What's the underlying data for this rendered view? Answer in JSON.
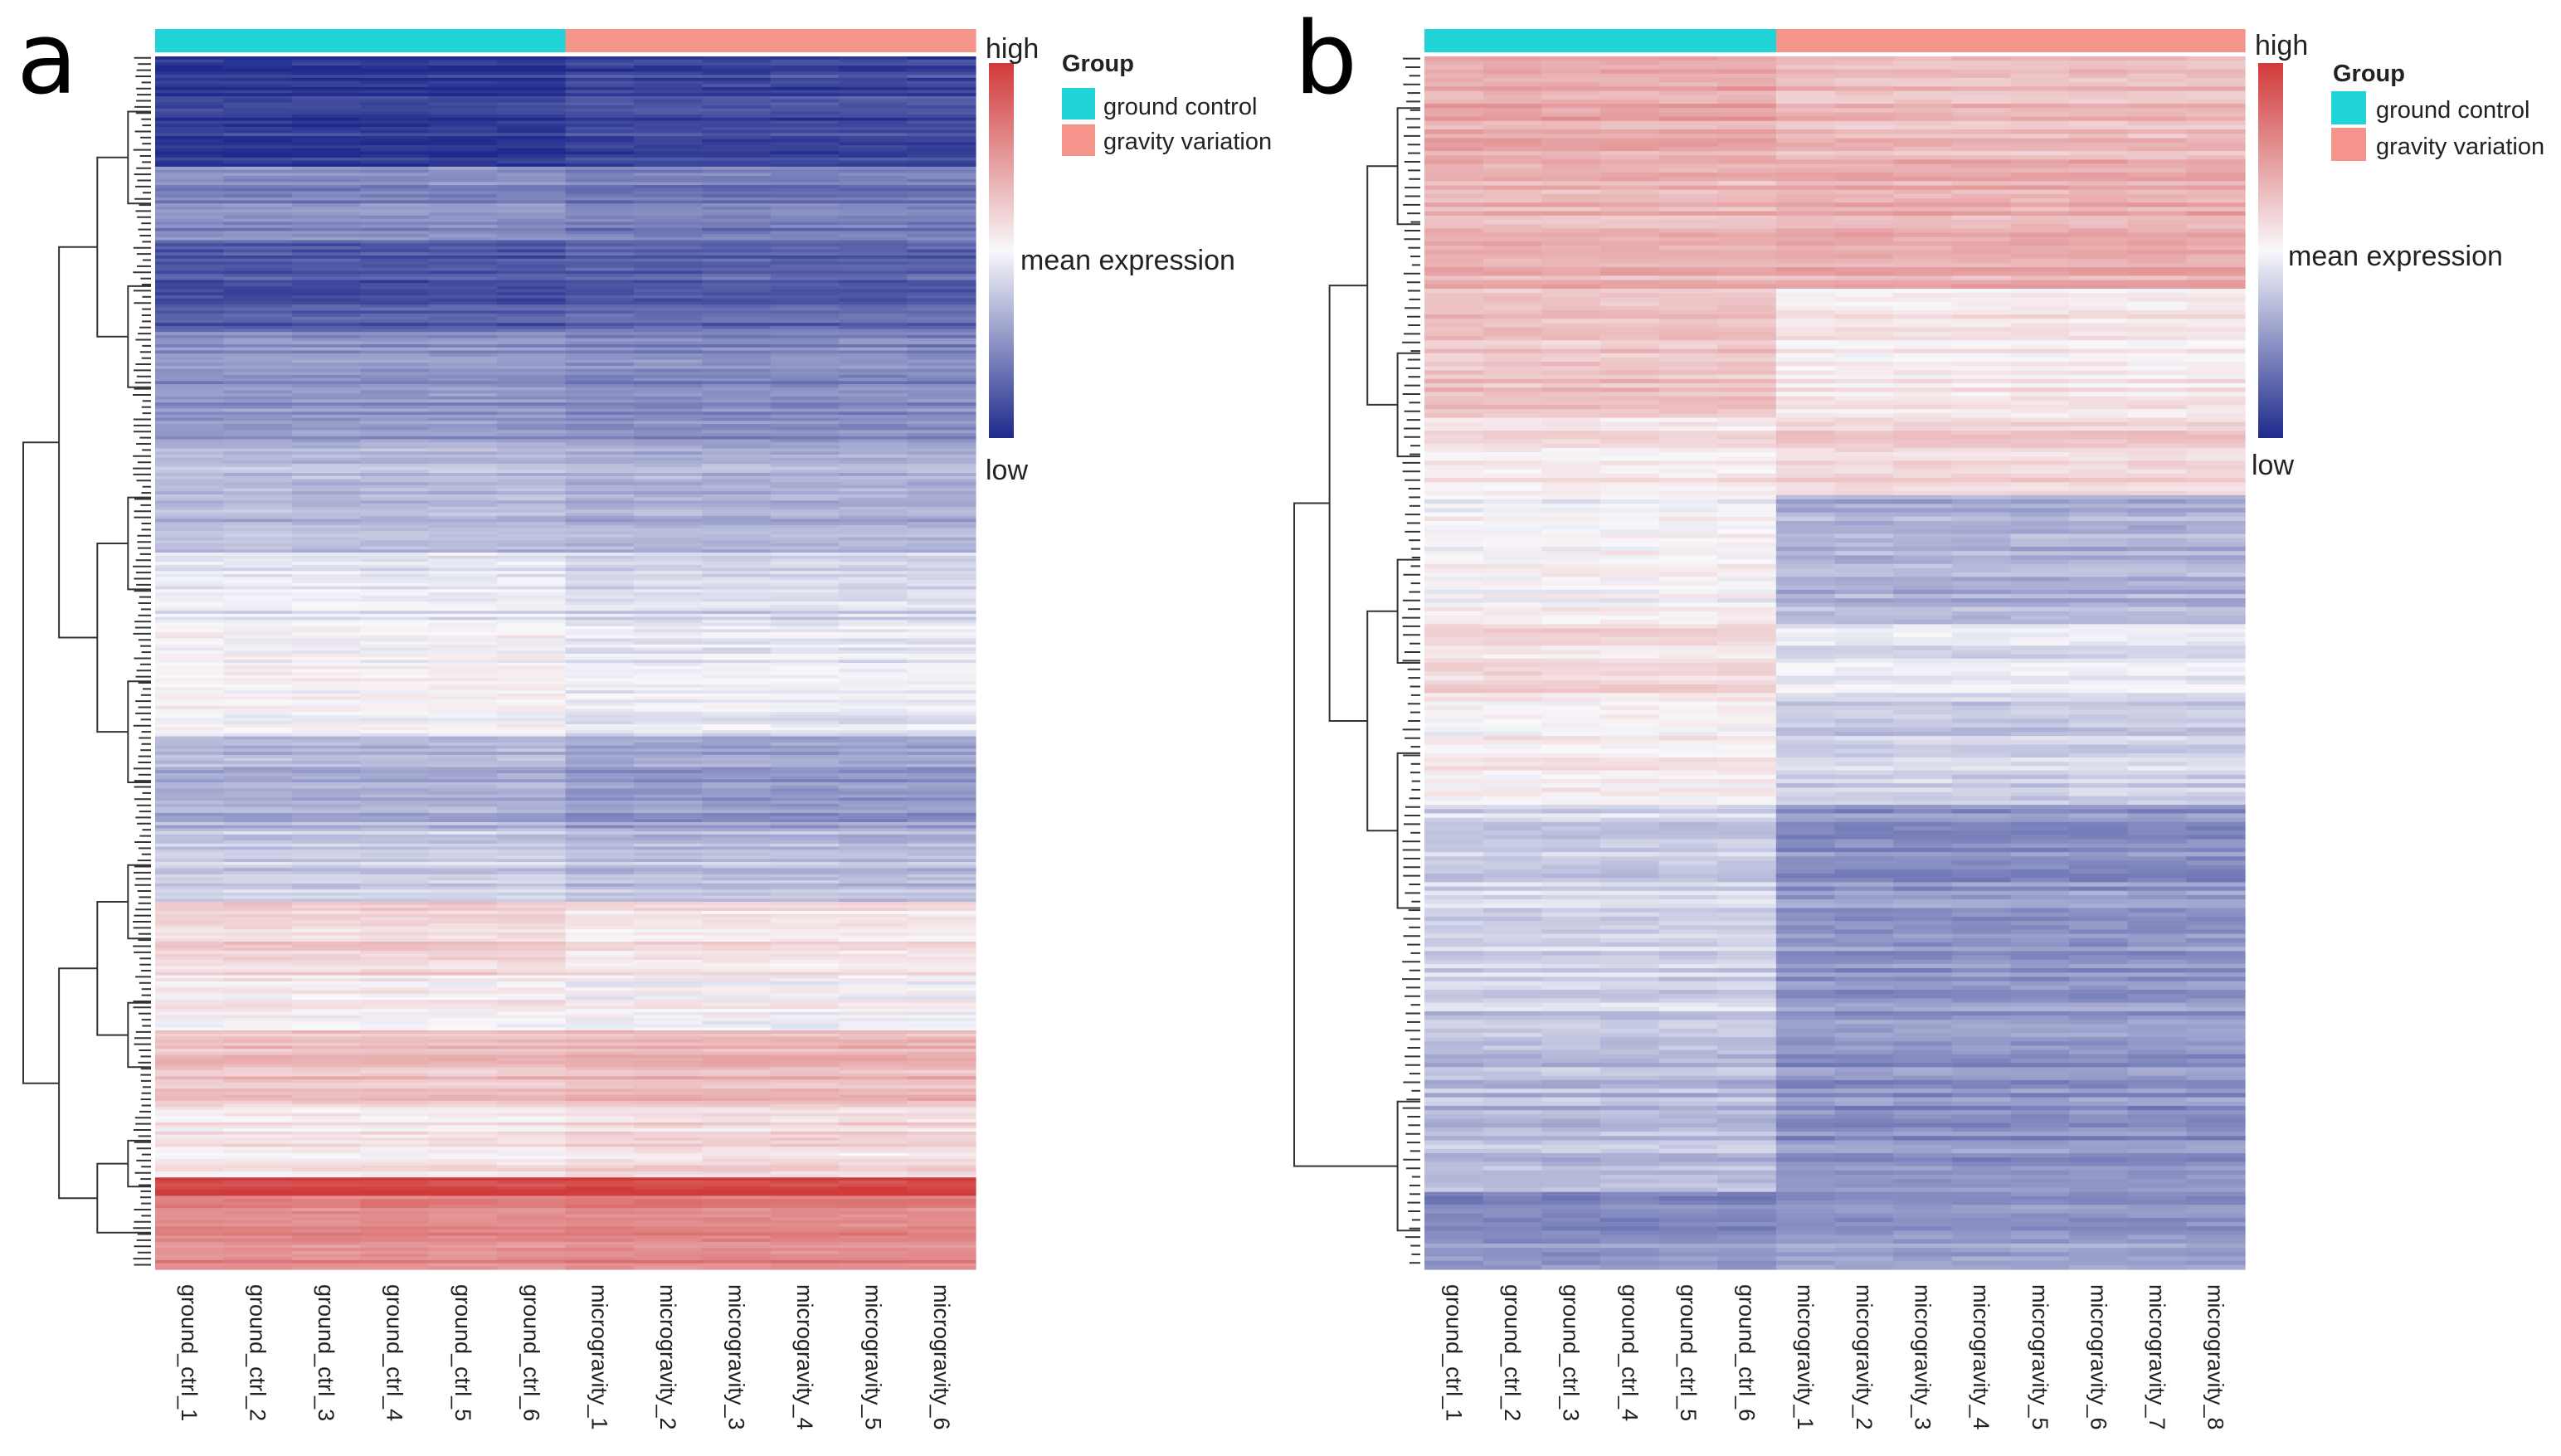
{
  "figure": {
    "panels": [
      "a",
      "b"
    ],
    "legend": {
      "title": "Group",
      "entries": [
        {
          "label": "ground control",
          "color": "#1fd3d6"
        },
        {
          "label": "gravity variation",
          "color": "#f4948a"
        }
      ]
    },
    "color_scale": {
      "high_label": "high",
      "mid_label": "mean expression",
      "low_label": "low",
      "high_color": "#d13a3a",
      "mid_color": "#f8f8fb",
      "low_color": "#1e2a8c"
    }
  },
  "chart_data": [
    {
      "type": "heatmap",
      "panel": "a",
      "title": "",
      "columns": [
        "ground_ctrl_1",
        "ground_ctrl_2",
        "ground_ctrl_3",
        "ground_ctrl_4",
        "ground_ctrl_5",
        "ground_ctrl_6",
        "microgravity_1",
        "microgravity_2",
        "microgravity_3",
        "microgravity_4",
        "microgravity_5",
        "microgravity_6"
      ],
      "column_groups": [
        "ground control",
        "ground control",
        "ground control",
        "ground control",
        "ground control",
        "ground control",
        "gravity variation",
        "gravity variation",
        "gravity variation",
        "gravity variation",
        "gravity variation",
        "gravity variation"
      ],
      "value_range": [
        -1,
        1
      ],
      "row_blocks": [
        {
          "rows": 6,
          "ground": -0.92,
          "gravity": -0.85
        },
        {
          "rows": 4,
          "ground": -0.55,
          "gravity": -0.62
        },
        {
          "rows": 5,
          "ground": -0.78,
          "gravity": -0.72
        },
        {
          "rows": 6,
          "ground": -0.5,
          "gravity": -0.55
        },
        {
          "rows": 6,
          "ground": -0.3,
          "gravity": -0.35
        },
        {
          "rows": 4,
          "ground": -0.1,
          "gravity": -0.18
        },
        {
          "rows": 6,
          "ground": 0.0,
          "gravity": -0.08
        },
        {
          "rows": 5,
          "ground": -0.35,
          "gravity": -0.45
        },
        {
          "rows": 4,
          "ground": -0.2,
          "gravity": -0.28
        },
        {
          "rows": 4,
          "ground": 0.2,
          "gravity": 0.12
        },
        {
          "rows": 3,
          "ground": 0.05,
          "gravity": 0.0
        },
        {
          "rows": 4,
          "ground": 0.3,
          "gravity": 0.35
        },
        {
          "rows": 4,
          "ground": 0.08,
          "gravity": 0.15
        },
        {
          "rows": 1,
          "ground": 0.95,
          "gravity": 0.95
        },
        {
          "rows": 4,
          "ground": 0.6,
          "gravity": 0.62
        }
      ]
    },
    {
      "type": "heatmap",
      "panel": "b",
      "title": "",
      "columns": [
        "ground_ctrl_1",
        "ground_ctrl_2",
        "ground_ctrl_3",
        "ground_ctrl_4",
        "ground_ctrl_5",
        "ground_ctrl_6",
        "microgravity_1",
        "microgravity_2",
        "microgravity_3",
        "microgravity_4",
        "microgravity_5",
        "microgravity_6",
        "microgravity_7",
        "microgravity_8"
      ],
      "column_groups": [
        "ground control",
        "ground control",
        "ground control",
        "ground control",
        "ground control",
        "ground control",
        "gravity variation",
        "gravity variation",
        "gravity variation",
        "gravity variation",
        "gravity variation",
        "gravity variation",
        "gravity variation",
        "gravity variation"
      ],
      "value_range": [
        -1,
        1
      ],
      "row_blocks": [
        {
          "rows": 4,
          "ground": 0.42,
          "gravity": 0.32
        },
        {
          "rows": 5,
          "ground": 0.35,
          "gravity": 0.38
        },
        {
          "rows": 5,
          "ground": 0.28,
          "gravity": 0.08
        },
        {
          "rows": 3,
          "ground": 0.1,
          "gravity": 0.2
        },
        {
          "rows": 5,
          "ground": 0.0,
          "gravity": -0.35
        },
        {
          "rows": 3,
          "ground": 0.15,
          "gravity": -0.1
        },
        {
          "rows": 4,
          "ground": 0.05,
          "gravity": -0.2
        },
        {
          "rows": 8,
          "ground": -0.18,
          "gravity": -0.48
        },
        {
          "rows": 7,
          "ground": -0.3,
          "gravity": -0.5
        },
        {
          "rows": 3,
          "ground": -0.5,
          "gravity": -0.45
        }
      ]
    }
  ]
}
